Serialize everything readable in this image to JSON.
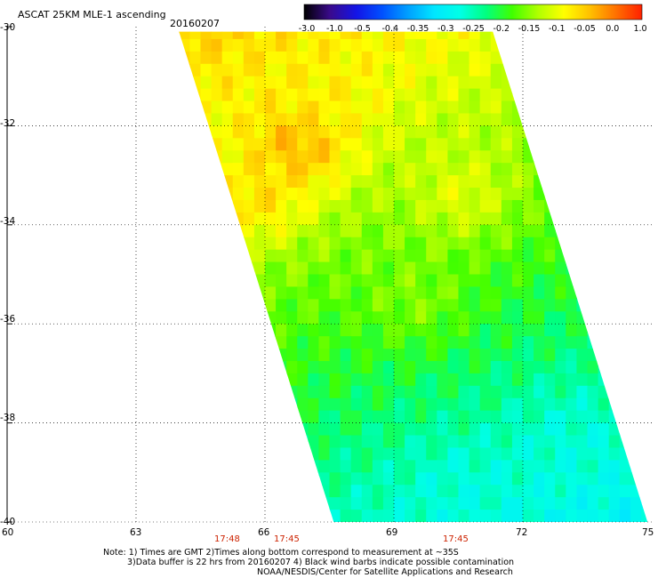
{
  "header": {
    "title": "ASCAT 25KM MLE-1 ascending",
    "date": "20160207"
  },
  "colorbar": {
    "tick_labels": [
      "-3.0",
      "-1.0",
      "-0.5",
      "-0.4",
      "-0.35",
      "-0.3",
      "-0.25",
      "-0.2",
      "-0.15",
      "-0.1",
      "-0.05",
      "0.0",
      "1.0"
    ],
    "color_stops": [
      "#000000",
      "#3a0a8c",
      "#1414e6",
      "#0050ff",
      "#00a0ff",
      "#00e6ff",
      "#00ffe6",
      "#00ff80",
      "#40ff00",
      "#b0ff00",
      "#ffff00",
      "#ffc000",
      "#ff7000",
      "#ff2000"
    ]
  },
  "axes": {
    "lon_labels": [
      "60",
      "63",
      "66",
      "69",
      "72",
      "75"
    ],
    "lat_labels": [
      "-30",
      "-32",
      "-34",
      "-36",
      "-38",
      "-40"
    ],
    "lon_range": [
      60,
      75
    ],
    "lat_range": [
      -40,
      -30
    ]
  },
  "swath": {
    "corners": {
      "top_left": {
        "lon": 64.0,
        "lat": -30.1
      },
      "top_right": {
        "lon": 71.3,
        "lat": -30.1
      },
      "bottom_right": {
        "lon": 74.9,
        "lat": -40.0
      },
      "bottom_left": {
        "lon": 67.6,
        "lat": -40.0
      }
    },
    "value_fields": [
      {
        "name": "broad south gradient",
        "lon": 70.5,
        "lat": -39.3,
        "value": -0.27
      },
      {
        "name": "orange core",
        "lon": 66.8,
        "lat": -32.4,
        "value": -0.02
      },
      {
        "name": "west yellow",
        "lon": 65.8,
        "lat": -33.5,
        "value": -0.06
      },
      {
        "name": "north yellow",
        "lon": 67.6,
        "lat": -31.3,
        "value": -0.08
      },
      {
        "name": "central green",
        "lon": 69.5,
        "lat": -35.5,
        "value": -0.15
      },
      {
        "name": "east yellow patch",
        "lon": 70.6,
        "lat": -33.4,
        "value": -0.1
      },
      {
        "name": "south-east cyan",
        "lon": 73.0,
        "lat": -38.3,
        "value": -0.27
      }
    ]
  },
  "time_labels": [
    {
      "text": "17:48",
      "lon": 65.0
    },
    {
      "text": "17:45",
      "lon": 66.5
    },
    {
      "text": "17:45",
      "lon": 70.5
    }
  ],
  "notes": [
    "Note: 1) Times are GMT 2)Times along bottom correspond to measurement at ~35S",
    "3)Data buffer is 22 hrs from 20160207 4) Black wind barbs indicate possible contamination",
    "NOAA/NESDIS/Center for Satellite Applications and Research"
  ],
  "colors": {
    "time_label": "#cc2200",
    "grid": "#000000",
    "text": "#000000"
  }
}
